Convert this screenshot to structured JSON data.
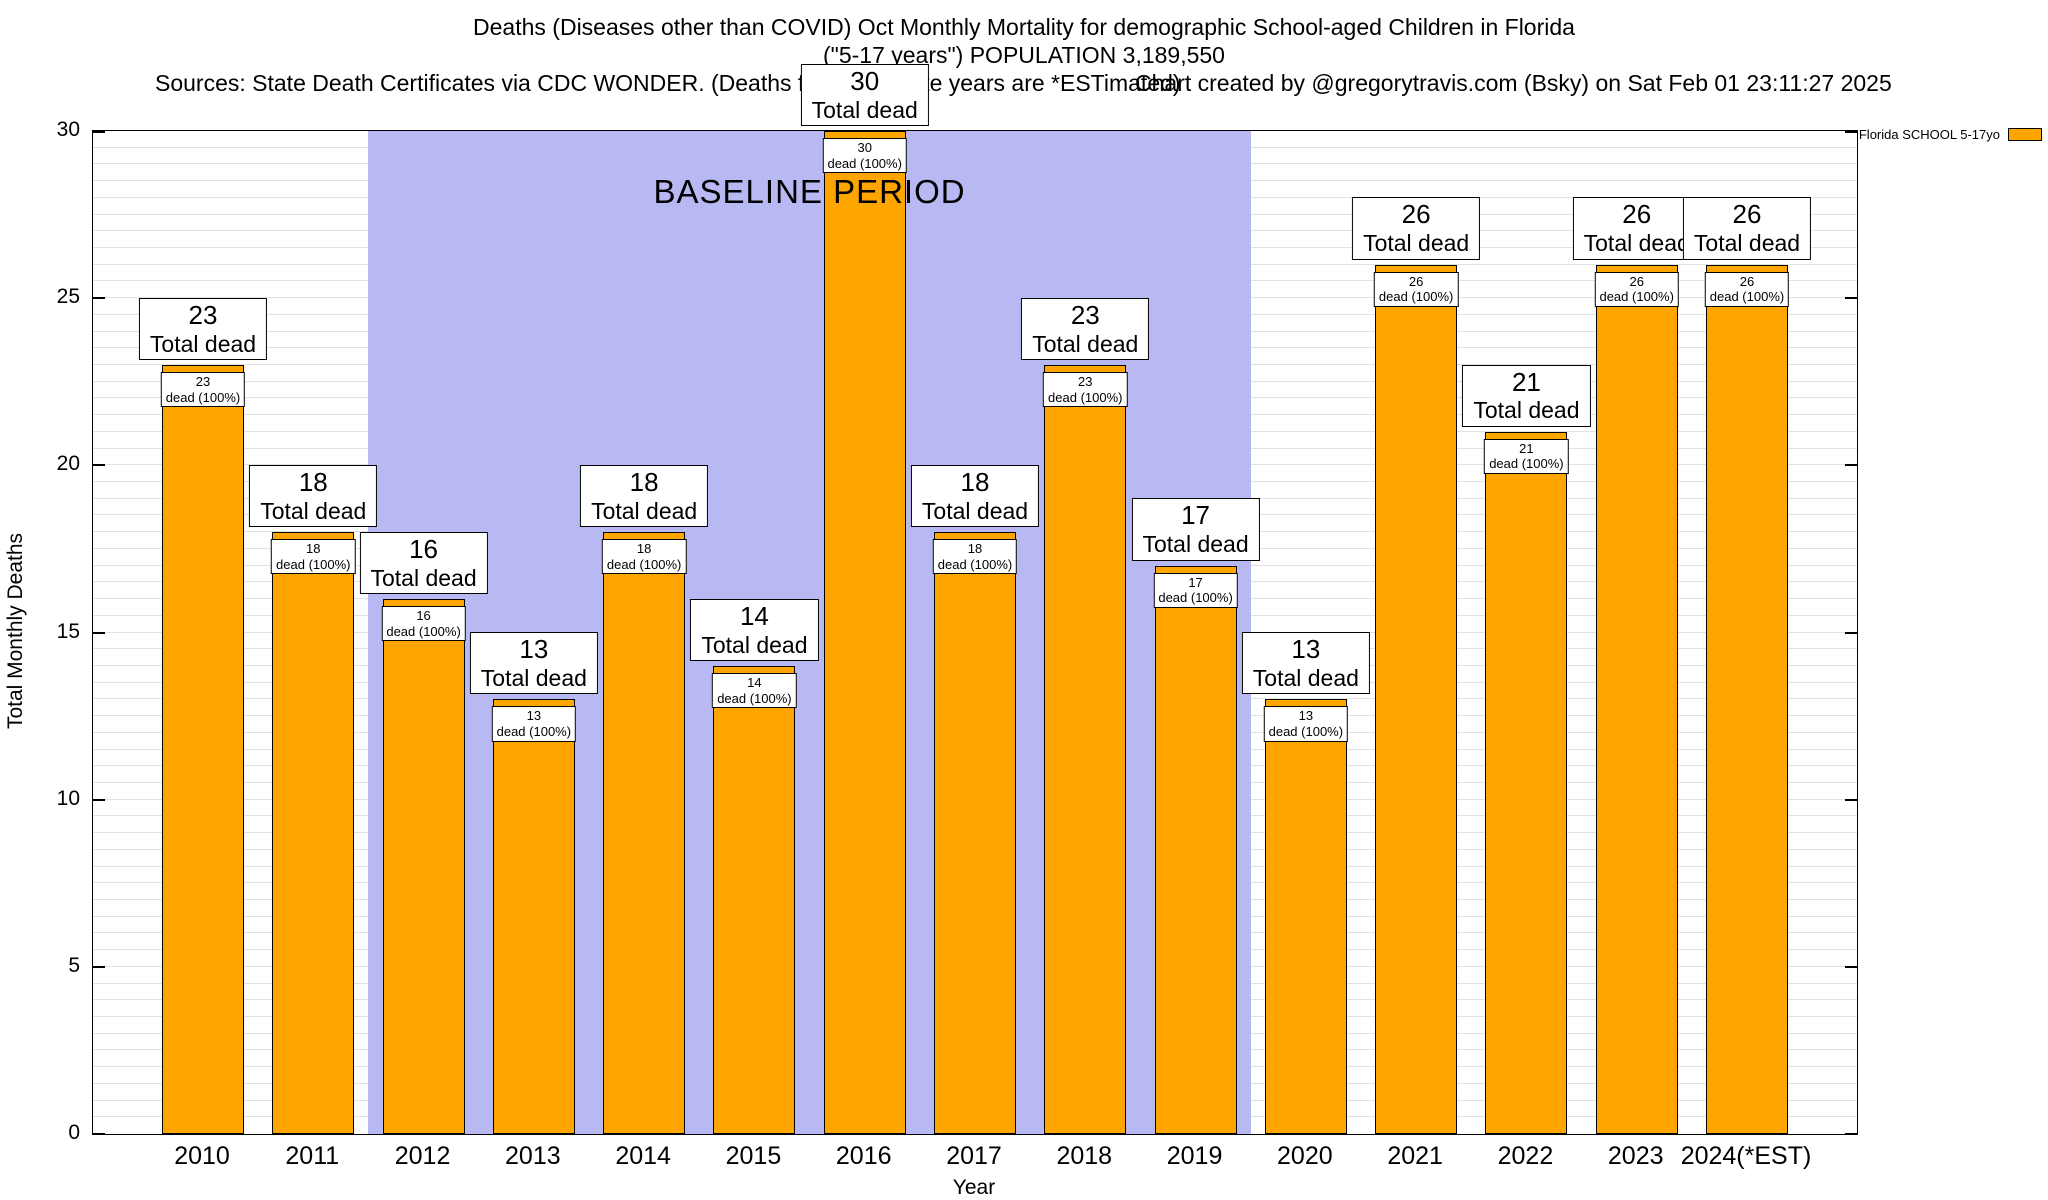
{
  "title": {
    "line1": "Deaths (Diseases other than COVID) Oct Monthly Mortality for demographic School-aged Children in Florida",
    "line2": "(\"5-17 years\") POPULATION 3,189,550",
    "sources": "Sources: State Death Certificates via CDC WONDER. (Deaths for incomplete years are *ESTimated)",
    "credit": "Chart created by @gregorytravis.com (Bsky) on Sat Feb 01 23:11:27 2025"
  },
  "legend": {
    "label": "Florida SCHOOL 5-17yo",
    "swatch_color": "#FFA500"
  },
  "axes": {
    "ylabel": "Total Monthly Deaths",
    "xlabel": "Year",
    "yticks": [
      0,
      5,
      10,
      15,
      20,
      25,
      30
    ]
  },
  "annotation": {
    "label": "BASELINE PERIOD",
    "from_category": "2012",
    "to_category": "2019",
    "region_color": "#b8b8f2"
  },
  "chart_data": {
    "type": "bar",
    "title": "Deaths (Diseases other than COVID) Oct Monthly Mortality for demographic School-aged Children in Florida (\"5-17 years\") POPULATION 3,189,550",
    "categories": [
      "2010",
      "2011",
      "2012",
      "2013",
      "2014",
      "2015",
      "2016",
      "2017",
      "2018",
      "2019",
      "2020",
      "2021",
      "2022",
      "2023",
      "2024(*EST)"
    ],
    "values": [
      23,
      18,
      16,
      13,
      18,
      14,
      30,
      18,
      23,
      17,
      13,
      26,
      21,
      26,
      26
    ],
    "series_name": "Florida SCHOOL 5-17yo",
    "bar_color": "#FFA500",
    "xlabel": "Year",
    "ylabel": "Total Monthly Deaths",
    "ylim": [
      0,
      30
    ],
    "grid_step": 0.5,
    "grid": true,
    "legend_position": "top-right-outside",
    "total_label": "Total dead",
    "inner_label": "dead (100%)",
    "baseline_period": {
      "label": "BASELINE PERIOD",
      "from": "2012",
      "to": "2019"
    }
  }
}
